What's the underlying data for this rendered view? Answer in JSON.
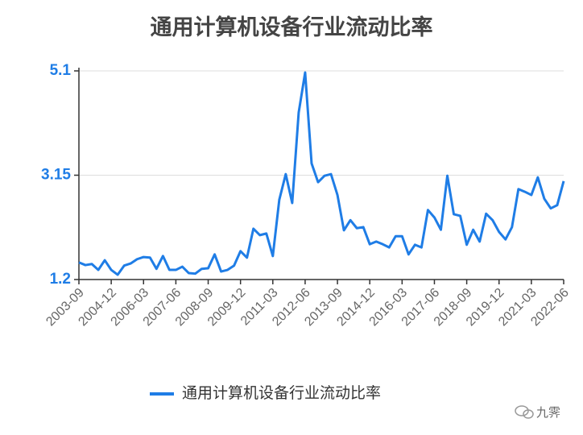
{
  "chart_data": {
    "type": "line",
    "title": "通用计算机设备行业流动比率",
    "categories": [
      "2003-09",
      null,
      null,
      null,
      null,
      "2004-12",
      null,
      null,
      null,
      null,
      "2006-03",
      null,
      null,
      null,
      null,
      "2007-06",
      null,
      null,
      null,
      null,
      "2008-09",
      null,
      null,
      null,
      null,
      "2009-12",
      null,
      null,
      null,
      null,
      "2011-03",
      null,
      null,
      null,
      null,
      "2012-06",
      null,
      null,
      null,
      null,
      "2013-09",
      null,
      null,
      null,
      null,
      "2014-12",
      null,
      null,
      null,
      null,
      "2016-03",
      null,
      null,
      null,
      null,
      "2017-06",
      null,
      null,
      null,
      null,
      "2018-09",
      null,
      null,
      null,
      null,
      "2019-12",
      null,
      null,
      null,
      null,
      "2021-03",
      null,
      null,
      null,
      null,
      "2022-06"
    ],
    "series": [
      {
        "name": "通用计算机设备行业流动比率",
        "color": "#1f7de6",
        "values": [
          1.52,
          1.47,
          1.49,
          1.38,
          1.56,
          1.38,
          1.29,
          1.46,
          1.5,
          1.58,
          1.62,
          1.61,
          1.4,
          1.64,
          1.38,
          1.38,
          1.44,
          1.32,
          1.31,
          1.4,
          1.41,
          1.67,
          1.35,
          1.38,
          1.46,
          1.73,
          1.61,
          2.15,
          2.03,
          2.06,
          1.64,
          2.69,
          3.17,
          2.63,
          4.32,
          5.07,
          3.37,
          3.02,
          3.14,
          3.17,
          2.78,
          2.12,
          2.31,
          2.16,
          2.18,
          1.86,
          1.91,
          1.86,
          1.8,
          2.01,
          2.01,
          1.67,
          1.85,
          1.8,
          2.5,
          2.36,
          2.13,
          3.14,
          2.42,
          2.39,
          1.85,
          2.13,
          1.91,
          2.43,
          2.31,
          2.09,
          1.95,
          2.18,
          2.89,
          2.84,
          2.78,
          3.11,
          2.71,
          2.53,
          2.59,
          3.04
        ]
      }
    ],
    "ylim": [
      1.2,
      5.1
    ],
    "yticks": [
      1.2,
      3.15,
      5.1
    ],
    "grid": true,
    "legend": "bottom",
    "watermark": "九霁"
  }
}
